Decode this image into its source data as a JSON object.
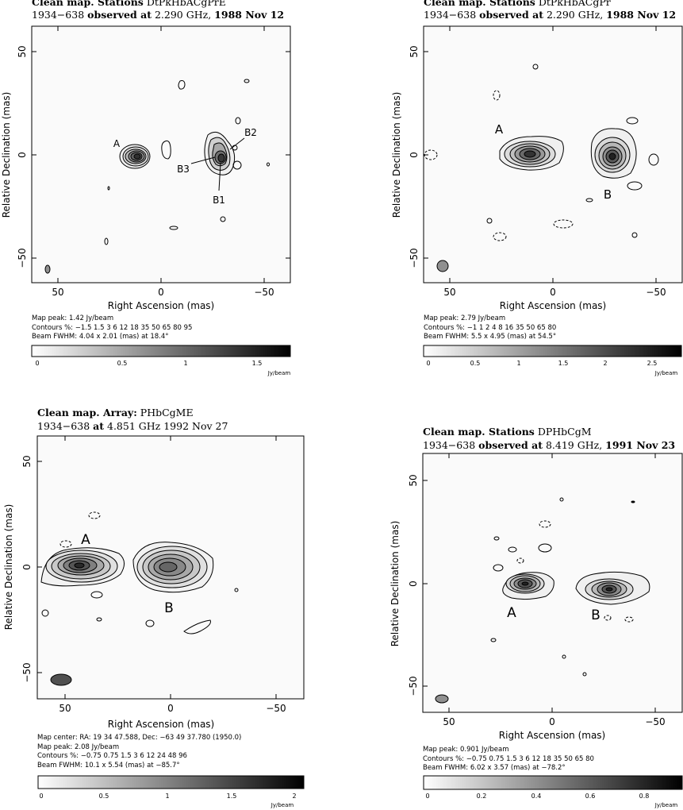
{
  "panels": [
    {
      "title": {
        "kw": "Clean map.  Stations",
        "rest": "DtPkHbACgPrE"
      },
      "subtitle": {
        "src": "1934−638",
        "observed": "observed at",
        "freq": "2.290 GHz,",
        "date": "1988 Nov 12"
      },
      "xlabel": "Right Ascension   (mas)",
      "ylabel": "Relative Declination   (mas)",
      "xticks": [
        "50",
        "0",
        "−50"
      ],
      "yticks": [
        "50",
        "0",
        "−50"
      ],
      "components": [
        "A",
        "B2",
        "B3",
        "B1"
      ],
      "info": [
        "Map peak: 1.42 Jy/beam",
        "Contours %: −1.5 1.5 3 6 12 18 35 50 65 80 95",
        "Beam FWHM: 4.04 x 2.01 (mas) at 18.4°"
      ],
      "wedge": {
        "ticks": [
          "0",
          "0.5",
          "1",
          "1.5"
        ],
        "unit": "Jy/beam"
      }
    },
    {
      "title": {
        "kw": "Clean map.  Stations",
        "rest": "DtPkHbACgPr"
      },
      "subtitle": {
        "src": "1934−638",
        "observed": "observed at",
        "freq": "2.290 GHz,",
        "date": "1988 Nov 12"
      },
      "xlabel": "Right Ascension   (mas)",
      "ylabel": "Relative Declination   (mas)",
      "xticks": [
        "50",
        "0",
        "−50"
      ],
      "yticks": [
        "50",
        "0",
        "−50"
      ],
      "components": [
        "A",
        "B"
      ],
      "info": [
        "Map peak: 2.79 Jy/beam",
        "Contours %: −1 1 2 4 8 16 35 50 65 80",
        "Beam FWHM: 5.5 x 4.95 (mas) at 54.5°"
      ],
      "wedge": {
        "ticks": [
          "0",
          "0.5",
          "1",
          "1.5",
          "2",
          "2.5"
        ],
        "unit": "Jy/beam"
      }
    },
    {
      "title": {
        "kw": "Clean map.  Array:",
        "rest": "PHbCgME"
      },
      "subtitle": {
        "src": "1934−638",
        "observed": "at",
        "freq": "4.851 GHz",
        "date": "1992 Nov 27"
      },
      "xlabel": "Right Ascension   (mas)",
      "ylabel": "Relative Declination   (mas)",
      "xticks": [
        "50",
        "0",
        "−50"
      ],
      "yticks": [
        "50",
        "0",
        "−50"
      ],
      "components": [
        "A",
        "B"
      ],
      "info": [
        "Map center:  RA: 19 34 47.588,  Dec: −63 49 37.780 (1950.0)",
        "Map peak: 2.08 Jy/beam",
        "Contours %: −0.75 0.75 1.5 3 6 12 24 48 96",
        "Beam FWHM: 10.1 x 5.54 (mas) at −85.7°"
      ],
      "wedge": {
        "ticks": [
          "0",
          "0.5",
          "1",
          "1.5",
          "2"
        ],
        "unit": "Jy/beam"
      }
    },
    {
      "title": {
        "kw": "Clean map.  Stations",
        "rest": "DPHbCgM"
      },
      "subtitle": {
        "src": "1934−638",
        "observed": "observed at",
        "freq": "8.419 GHz,",
        "date": "1991 Nov 23"
      },
      "xlabel": "Right Ascension   (mas)",
      "ylabel": "Relative Declination   (mas)",
      "xticks": [
        "50",
        "0",
        "−50"
      ],
      "yticks": [
        "50",
        "0",
        "−50"
      ],
      "components": [
        "A",
        "B"
      ],
      "info": [
        "Map peak: 0.901 Jy/beam",
        "Contours %: −0.75 0.75 1.5 3 6 12 18 35 50 65 80",
        "Beam FWHM: 6.02 x 3.57 (mas) at −78.2°"
      ],
      "wedge": {
        "ticks": [
          "0",
          "0.2",
          "0.4",
          "0.6",
          "0.8"
        ],
        "unit": "Jy/beam"
      }
    }
  ]
}
